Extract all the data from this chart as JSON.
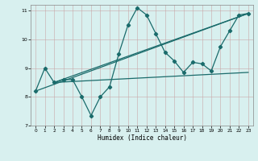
{
  "xlabel": "Humidex (Indice chaleur)",
  "xlim": [
    -0.5,
    23.5
  ],
  "ylim": [
    7,
    11.2
  ],
  "yticks": [
    7,
    8,
    9,
    10,
    11
  ],
  "xticks": [
    0,
    1,
    2,
    3,
    4,
    5,
    6,
    7,
    8,
    9,
    10,
    11,
    12,
    13,
    14,
    15,
    16,
    17,
    18,
    19,
    20,
    21,
    22,
    23
  ],
  "bg_color": "#d8f0ef",
  "line_color": "#1a6b6b",
  "line1_x": [
    0,
    1,
    2,
    3,
    4,
    5,
    6,
    7,
    8,
    9,
    10,
    11,
    12,
    13,
    14,
    15,
    16,
    17,
    18,
    19,
    20,
    21,
    22,
    23
  ],
  "line1_y": [
    8.2,
    9.0,
    8.5,
    8.6,
    8.6,
    8.0,
    7.35,
    8.0,
    8.35,
    9.5,
    10.5,
    11.1,
    10.85,
    10.2,
    9.55,
    9.25,
    8.85,
    9.2,
    9.15,
    8.9,
    9.75,
    10.3,
    10.85,
    10.9
  ],
  "line2_x": [
    0,
    23
  ],
  "line2_y": [
    8.2,
    10.9
  ],
  "line3_x": [
    2,
    23
  ],
  "line3_y": [
    8.5,
    10.9
  ],
  "line4_x": [
    2,
    23
  ],
  "line4_y": [
    8.5,
    8.85
  ]
}
